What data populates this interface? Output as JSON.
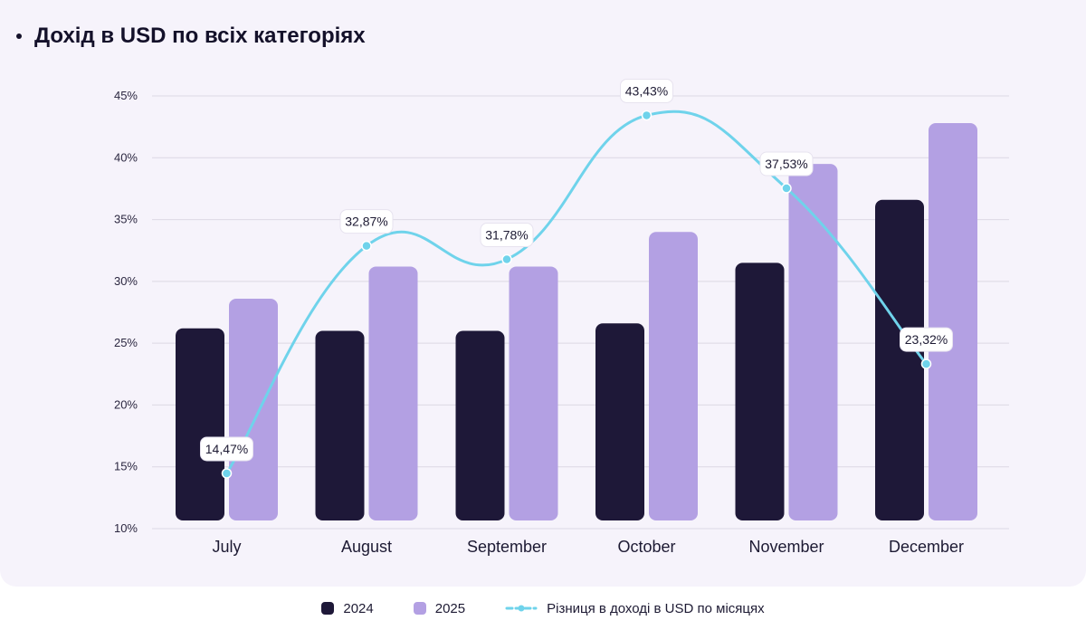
{
  "page": {
    "title": "Дохід в USD по всіх категоріях"
  },
  "colors": {
    "bar_2024": "#1e1838",
    "bar_2025": "#b3a0e3",
    "line": "#6fd3eb",
    "grid": "#dcd8e4",
    "tick_text": "#2b2740",
    "label_bg": "#ffffff"
  },
  "chart_data": {
    "type": "bar",
    "title": "Дохід в USD по всіх категоріях",
    "xlabel": "",
    "ylabel": "",
    "ylim": [
      10,
      45
    ],
    "yticks": [
      10,
      15,
      20,
      25,
      30,
      35,
      40,
      45
    ],
    "ytick_labels": [
      "10%",
      "15%",
      "20%",
      "25%",
      "30%",
      "35%",
      "40%",
      "45%"
    ],
    "grid": true,
    "legend_position": "bottom-center",
    "categories": [
      "July",
      "August",
      "September",
      "October",
      "November",
      "December"
    ],
    "series": [
      {
        "name": "2024",
        "type": "bar",
        "values": [
          26.2,
          26.0,
          26.0,
          26.6,
          31.5,
          36.6
        ]
      },
      {
        "name": "2025",
        "type": "bar",
        "values": [
          28.6,
          31.2,
          31.2,
          34.0,
          39.5,
          42.8
        ]
      },
      {
        "name": "Різниця в доході в USD по місяцях",
        "type": "line",
        "values": [
          14.47,
          32.87,
          31.78,
          43.43,
          37.53,
          23.32
        ],
        "labels": [
          "14,47%",
          "32,87%",
          "31,78%",
          "43,43%",
          "37,53%",
          "23,32%"
        ]
      }
    ]
  },
  "legend": [
    {
      "label": "2024"
    },
    {
      "label": "2025"
    },
    {
      "label": "Різниця в доході в USD по місяцях"
    }
  ]
}
